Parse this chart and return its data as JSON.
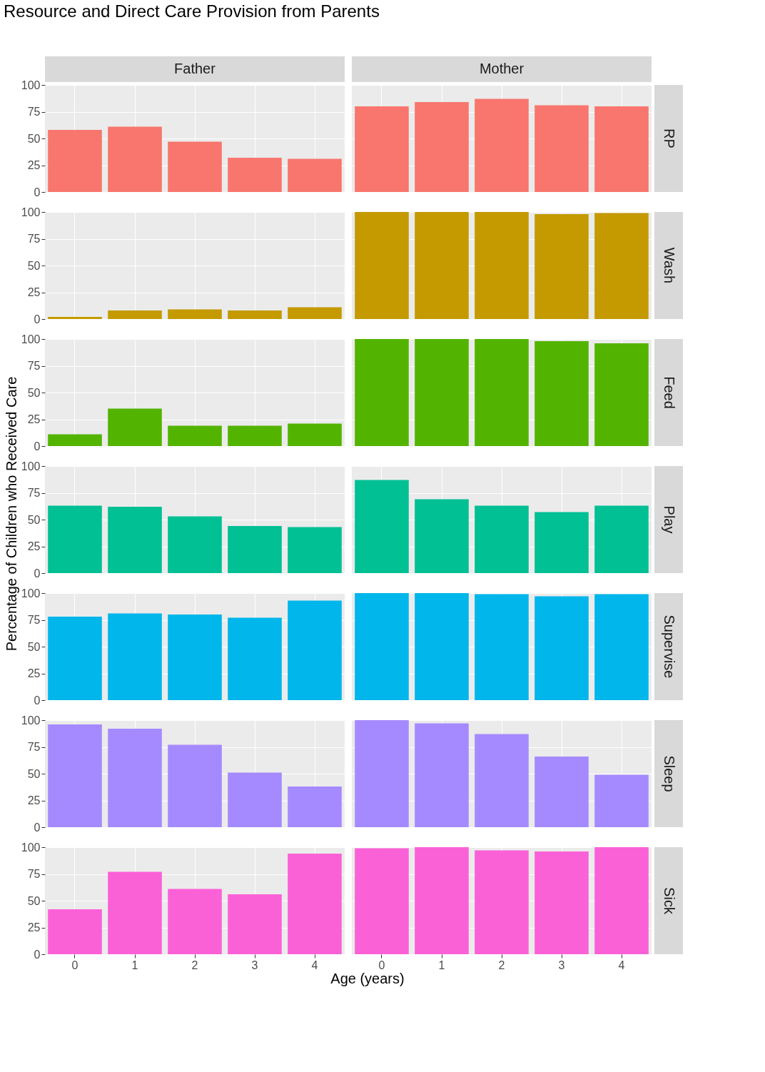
{
  "chart_data": [
    {
      "type": "bar",
      "title": "Resource and Direct Care Provision from Parents",
      "subtitle": "Father",
      "categories": [
        "0",
        "1",
        "2",
        "3",
        "4"
      ],
      "values": [
        58,
        61,
        47,
        32,
        31
      ],
      "color": "#f8766d",
      "ylim": [
        0,
        100
      ],
      "yticks": [
        0,
        25,
        50,
        75,
        100
      ],
      "grid": true,
      "tick_labels": "y"
    },
    {
      "type": "bar",
      "subtitle": "Mother",
      "y2label": "RP",
      "categories": [
        "0",
        "1",
        "2",
        "3",
        "4"
      ],
      "values": [
        80,
        84,
        87,
        81,
        80
      ],
      "color": "#f8766d",
      "ylim": [
        0,
        100
      ],
      "yticks": [
        0,
        25,
        50,
        75,
        100
      ],
      "grid": true,
      "tick_labels": false
    },
    {
      "type": "bar",
      "categories": [
        "0",
        "1",
        "2",
        "3",
        "4"
      ],
      "values": [
        2,
        8,
        9,
        8,
        11
      ],
      "color": "#c49a00",
      "ylim": [
        0,
        100
      ],
      "yticks": [
        0,
        25,
        50,
        75,
        100
      ],
      "grid": true,
      "tick_labels": "y"
    },
    {
      "type": "bar",
      "y2label": "Wash",
      "categories": [
        "0",
        "1",
        "2",
        "3",
        "4"
      ],
      "values": [
        100,
        100,
        100,
        98,
        99
      ],
      "color": "#c49a00",
      "ylim": [
        0,
        100
      ],
      "yticks": [
        0,
        25,
        50,
        75,
        100
      ],
      "grid": true,
      "tick_labels": false
    },
    {
      "type": "bar",
      "categories": [
        "0",
        "1",
        "2",
        "3",
        "4"
      ],
      "values": [
        11,
        35,
        19,
        19,
        21
      ],
      "color": "#53b400",
      "ylim": [
        0,
        100
      ],
      "yticks": [
        0,
        25,
        50,
        75,
        100
      ],
      "grid": true,
      "tick_labels": "y"
    },
    {
      "type": "bar",
      "y2label": "Feed",
      "categories": [
        "0",
        "1",
        "2",
        "3",
        "4"
      ],
      "values": [
        100,
        100,
        100,
        98,
        96
      ],
      "color": "#53b400",
      "ylim": [
        0,
        100
      ],
      "yticks": [
        0,
        25,
        50,
        75,
        100
      ],
      "grid": true,
      "tick_labels": false
    },
    {
      "type": "bar",
      "ylabel": "Percentage of Children who Received Care",
      "categories": [
        "0",
        "1",
        "2",
        "3",
        "4"
      ],
      "values": [
        63,
        62,
        53,
        44,
        43
      ],
      "color": "#00c094",
      "ylim": [
        0,
        100
      ],
      "yticks": [
        0,
        25,
        50,
        75,
        100
      ],
      "grid": true,
      "tick_labels": "y"
    },
    {
      "type": "bar",
      "y2label": "Play",
      "categories": [
        "0",
        "1",
        "2",
        "3",
        "4"
      ],
      "values": [
        87,
        69,
        63,
        57,
        63
      ],
      "color": "#00c094",
      "ylim": [
        0,
        100
      ],
      "yticks": [
        0,
        25,
        50,
        75,
        100
      ],
      "grid": true,
      "tick_labels": false
    },
    {
      "type": "bar",
      "categories": [
        "0",
        "1",
        "2",
        "3",
        "4"
      ],
      "values": [
        78,
        81,
        80,
        77,
        93
      ],
      "color": "#00b6eb",
      "ylim": [
        0,
        100
      ],
      "yticks": [
        0,
        25,
        50,
        75,
        100
      ],
      "grid": true,
      "tick_labels": "y"
    },
    {
      "type": "bar",
      "y2label": "Supervise",
      "categories": [
        "0",
        "1",
        "2",
        "3",
        "4"
      ],
      "values": [
        100,
        100,
        99,
        97,
        99
      ],
      "color": "#00b6eb",
      "ylim": [
        0,
        100
      ],
      "yticks": [
        0,
        25,
        50,
        75,
        100
      ],
      "grid": true,
      "tick_labels": false
    },
    {
      "type": "bar",
      "categories": [
        "0",
        "1",
        "2",
        "3",
        "4"
      ],
      "values": [
        96,
        92,
        77,
        51,
        38
      ],
      "color": "#a58aff",
      "ylim": [
        0,
        100
      ],
      "yticks": [
        0,
        25,
        50,
        75,
        100
      ],
      "grid": true,
      "tick_labels": "y"
    },
    {
      "type": "bar",
      "y2label": "Sleep",
      "categories": [
        "0",
        "1",
        "2",
        "3",
        "4"
      ],
      "values": [
        100,
        97,
        87,
        66,
        49
      ],
      "color": "#a58aff",
      "ylim": [
        0,
        100
      ],
      "yticks": [
        0,
        25,
        50,
        75,
        100
      ],
      "grid": true,
      "tick_labels": false
    },
    {
      "type": "bar",
      "xlabel": "Age (years)",
      "categories": [
        "0",
        "1",
        "2",
        "3",
        "4"
      ],
      "values": [
        42,
        77,
        61,
        56,
        94
      ],
      "color": "#fb61d7",
      "ylim": [
        0,
        100
      ],
      "yticks": [
        0,
        25,
        50,
        75,
        100
      ],
      "grid": true
    },
    {
      "type": "bar",
      "y2label": "Sick",
      "categories": [
        "0",
        "1",
        "2",
        "3",
        "4"
      ],
      "values": [
        99,
        100,
        97,
        96,
        100
      ],
      "color": "#fb61d7",
      "ylim": [
        0,
        100
      ],
      "yticks": [
        0,
        25,
        50,
        75,
        100
      ],
      "grid": true,
      "tick_labels": "x"
    }
  ]
}
